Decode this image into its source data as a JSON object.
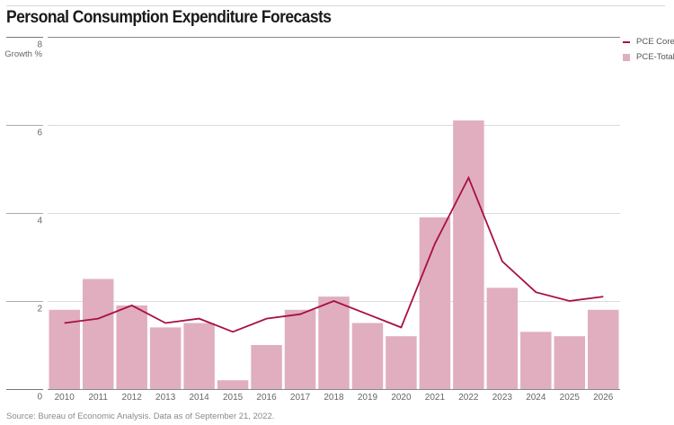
{
  "chart_data": {
    "type": "bar",
    "title": "Personal Consumption Expenditure Forecasts",
    "xlabel": "",
    "ylabel": "Growth %",
    "ylim": [
      0,
      8
    ],
    "yticks": [
      0,
      2,
      4,
      6,
      8
    ],
    "grid": true,
    "legend_position": "top-right",
    "categories": [
      "2010",
      "2011",
      "2012",
      "2013",
      "2014",
      "2015",
      "2016",
      "2017",
      "2018",
      "2019",
      "2020",
      "2021",
      "2022",
      "2023",
      "2024",
      "2025",
      "2026"
    ],
    "series": [
      {
        "name": "PCE Core",
        "type": "line",
        "color": "#a8113f",
        "values": [
          1.5,
          1.6,
          1.9,
          1.5,
          1.6,
          1.3,
          1.6,
          1.7,
          2.0,
          1.7,
          1.4,
          3.3,
          4.8,
          2.9,
          2.2,
          2.0,
          2.1
        ]
      },
      {
        "name": "PCE-Total",
        "type": "bar",
        "color": "#e0aebf",
        "values": [
          1.8,
          2.5,
          1.9,
          1.4,
          1.5,
          0.2,
          1.0,
          1.8,
          2.1,
          1.5,
          1.2,
          3.9,
          6.1,
          2.3,
          1.3,
          1.2,
          1.8
        ]
      }
    ],
    "source": "Source: Bureau of Economic Analysis. Data as of September 21, 2022."
  }
}
